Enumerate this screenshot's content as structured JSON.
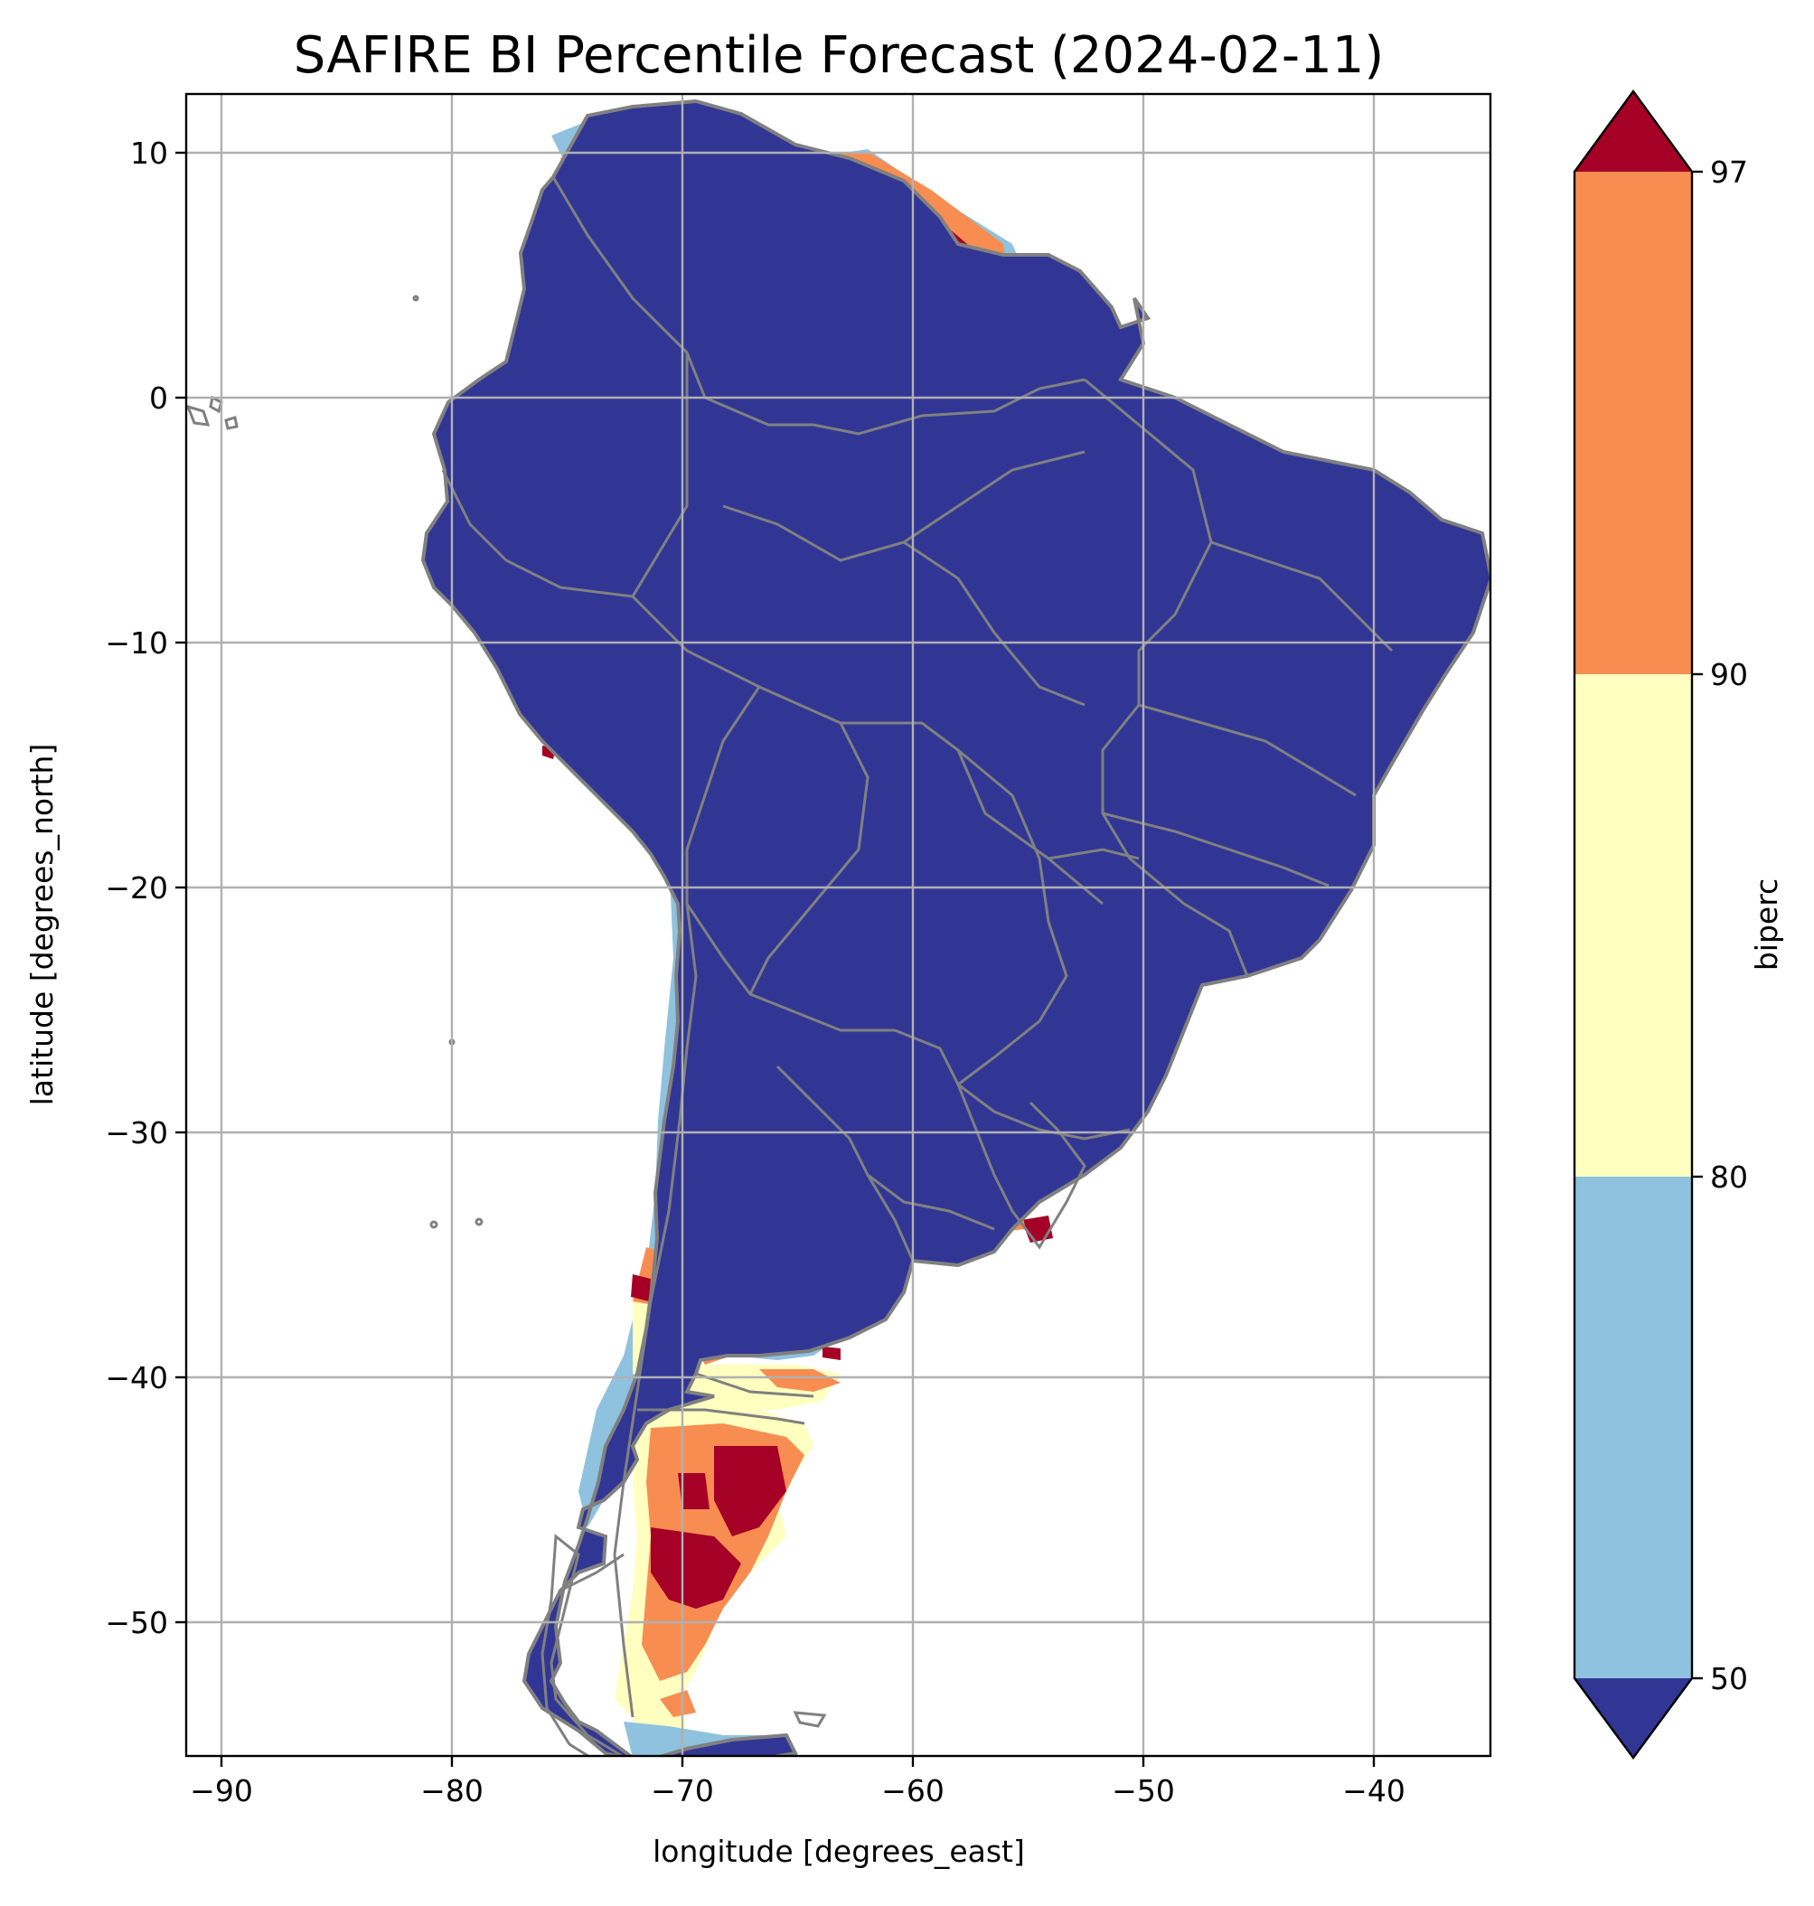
{
  "title": "SAFIRE BI Percentile Forecast (2024-02-11)",
  "map": {
    "xlabel": "longitude [degrees_east]",
    "ylabel": "latitude [degrees_north]",
    "lon_range": [
      -91.6,
      -35.0
    ],
    "lat_range": [
      -55.8,
      12.4
    ],
    "x_ticks": [
      "−90",
      "−80",
      "−70",
      "−60",
      "−50",
      "−40"
    ],
    "y_ticks": [
      "10",
      "0",
      "−10",
      "−20",
      "−30",
      "−40",
      "−50"
    ],
    "grid": true,
    "border_color": "#808080",
    "background_class_color": "#313695"
  },
  "colorbar": {
    "label": "biperc",
    "ticks": [
      "50",
      "80",
      "90",
      "97"
    ],
    "bins": [
      {
        "range": "<50",
        "color": "#313695",
        "extend": true
      },
      {
        "range": "50-80",
        "color": "#8fc2de"
      },
      {
        "range": "80-90",
        "color": "#ffffc0"
      },
      {
        "range": "90-97",
        "color": "#f88d52"
      },
      {
        "range": ">97",
        "color": "#a50026",
        "extend": true
      }
    ]
  }
}
